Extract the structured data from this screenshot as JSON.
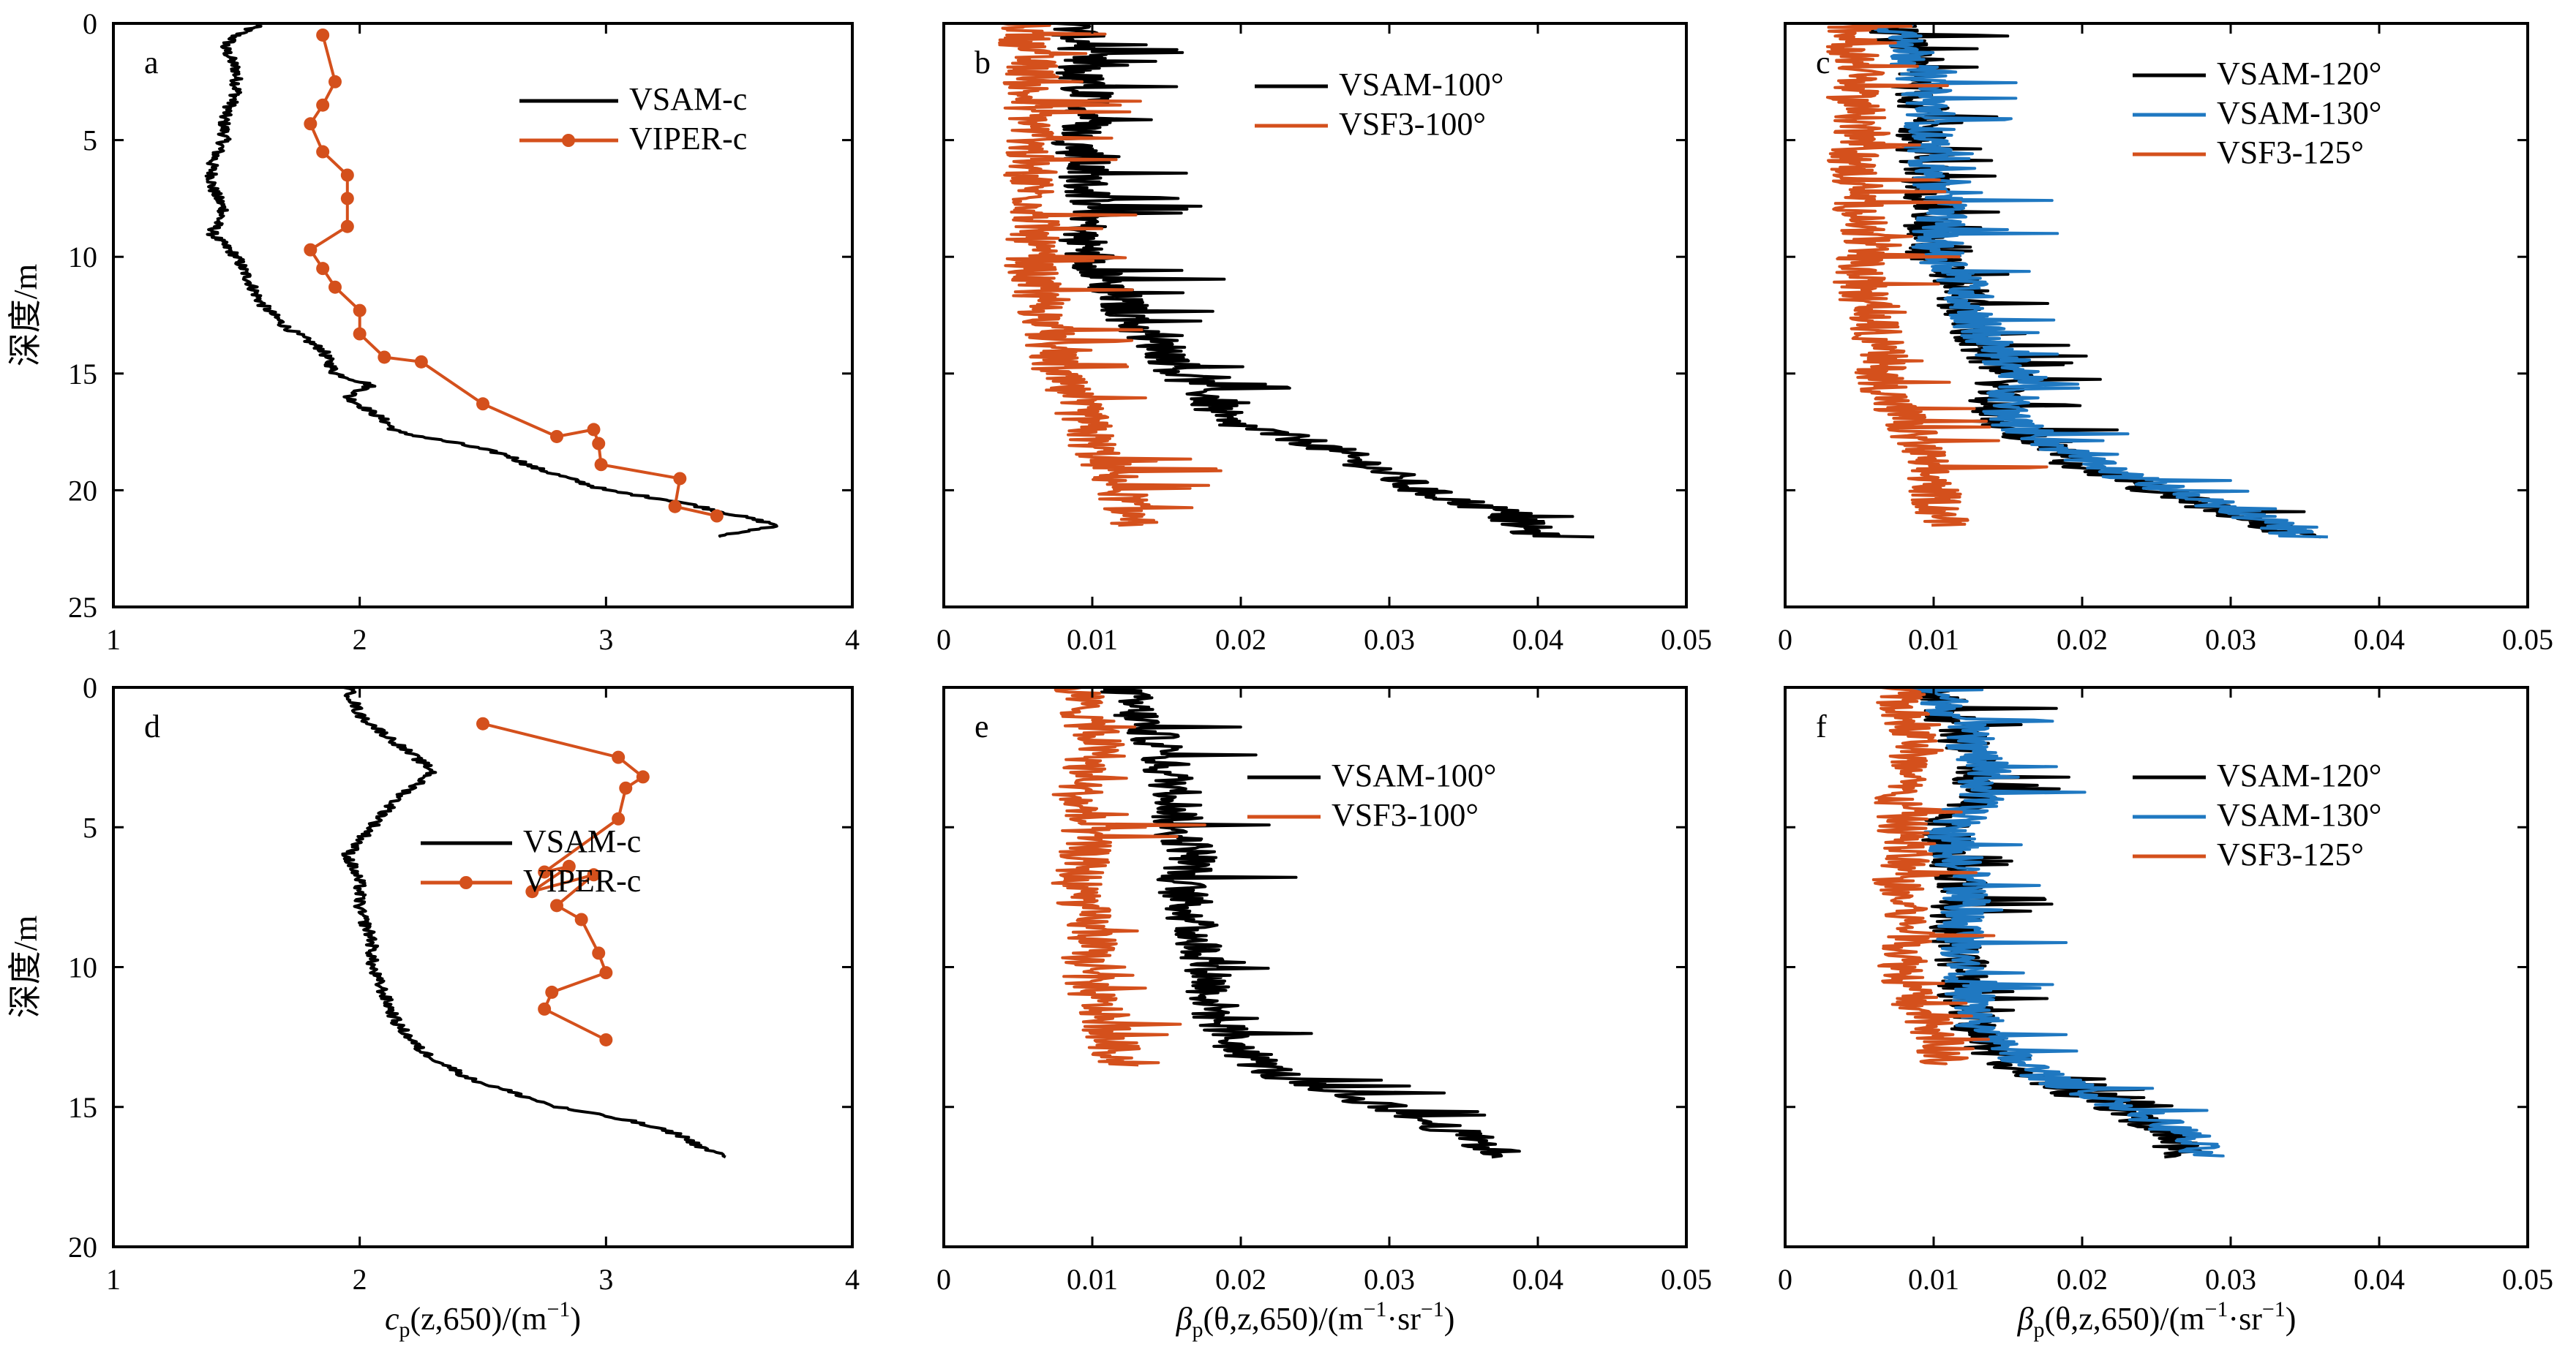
{
  "colors": {
    "black": "#000000",
    "orange": "#d4501c",
    "blue": "#1f78c1"
  },
  "ylabel_rows": [
    "深度/m",
    "深度/m"
  ],
  "xlabels": [
    {
      "main": "c",
      "sub": "p",
      "rest": "(z,650)/(m",
      "sup": "−1",
      "close": ")"
    },
    {
      "main": "β",
      "sub": "p",
      "rest": "(θ,z,650)/(m",
      "sup": "−1",
      "mid": "·sr",
      "sup2": "−1",
      "close": ")"
    },
    {
      "main": "β",
      "sub": "p",
      "rest": "(θ,z,650)/(m",
      "sup": "−1",
      "mid": "·sr",
      "sup2": "−1",
      "close": ")"
    }
  ],
  "chart_data": [
    {
      "panel": "a",
      "type": "line",
      "xlim": [
        1,
        4
      ],
      "ylim": [
        0,
        25
      ],
      "xticks": [
        "1",
        "2",
        "3",
        "4"
      ],
      "yticks": [
        "0",
        "5",
        "10",
        "15",
        "20",
        "25"
      ],
      "legend": [
        "VSAM-c",
        "VIPER-c"
      ],
      "series": [
        {
          "name": "VSAM-c",
          "color": "black",
          "markers": false,
          "depth": [
            0,
            0.5,
            1,
            2,
            3,
            4,
            5,
            6,
            7,
            8,
            9,
            10,
            11,
            12,
            13,
            14,
            15,
            15.5,
            16,
            17,
            17.5,
            18,
            18.5,
            19,
            19.5,
            20,
            20.5,
            21,
            21.5,
            22
          ],
          "values": [
            1.6,
            1.5,
            1.45,
            1.5,
            1.5,
            1.45,
            1.45,
            1.4,
            1.4,
            1.45,
            1.4,
            1.5,
            1.55,
            1.6,
            1.7,
            1.85,
            1.9,
            2.05,
            1.95,
            2.1,
            2.15,
            2.4,
            2.6,
            2.7,
            2.85,
            3.0,
            3.3,
            3.5,
            3.7,
            3.45
          ]
        },
        {
          "name": "VIPER-c",
          "color": "orange",
          "markers": true,
          "depth": [
            0.5,
            2.5,
            3.5,
            4.3,
            5.5,
            6.5,
            7.5,
            8.7,
            9.7,
            10.5,
            11.3,
            12.3,
            13.3,
            14.3,
            14.5,
            16.3,
            17.7,
            17.4,
            18,
            18.9,
            19.5,
            20.7,
            21.1
          ],
          "values": [
            1.85,
            1.9,
            1.85,
            1.8,
            1.85,
            1.95,
            1.95,
            1.95,
            1.8,
            1.85,
            1.9,
            2.0,
            2.0,
            2.1,
            2.25,
            2.5,
            2.8,
            2.95,
            2.97,
            2.98,
            3.3,
            3.28,
            3.45
          ]
        }
      ]
    },
    {
      "panel": "b",
      "type": "line",
      "xlim": [
        0,
        0.05
      ],
      "ylim": [
        0,
        25
      ],
      "xticks": [
        "0",
        "0.01",
        "0.02",
        "0.03",
        "0.04",
        "0.05"
      ],
      "yticks": [],
      "legend": [
        "VSAM-100°",
        "VSF3-100°"
      ],
      "series": [
        {
          "name": "VSAM-100°",
          "color": "black",
          "depth": [
            0,
            1,
            2,
            3,
            4,
            5,
            6,
            7,
            8,
            9,
            10,
            11,
            12,
            13,
            14,
            15,
            16,
            17,
            18,
            19,
            20,
            21,
            22
          ],
          "values": [
            0.0085,
            0.0095,
            0.009,
            0.0095,
            0.01,
            0.009,
            0.0095,
            0.0095,
            0.0105,
            0.009,
            0.01,
            0.011,
            0.012,
            0.013,
            0.015,
            0.016,
            0.018,
            0.0185,
            0.025,
            0.029,
            0.032,
            0.038,
            0.04
          ]
        },
        {
          "name": "VSF3-100°",
          "color": "orange",
          "depth": [
            0,
            1,
            2,
            3,
            4,
            5,
            6,
            7,
            8,
            9,
            10,
            11,
            12,
            13,
            14,
            15,
            16,
            17,
            18,
            19,
            20,
            21,
            21.5
          ],
          "values": [
            0.0055,
            0.0055,
            0.006,
            0.0055,
            0.006,
            0.006,
            0.0055,
            0.006,
            0.0062,
            0.006,
            0.0058,
            0.006,
            0.0065,
            0.007,
            0.0072,
            0.0075,
            0.0085,
            0.0095,
            0.01,
            0.011,
            0.012,
            0.0125,
            0.013
          ]
        }
      ]
    },
    {
      "panel": "c",
      "type": "line",
      "xlim": [
        0,
        0.05
      ],
      "ylim": [
        0,
        25
      ],
      "xticks": [
        "0",
        "0.01",
        "0.02",
        "0.03",
        "0.04",
        "0.05"
      ],
      "yticks": [],
      "legend": [
        "VSAM-120°",
        "VSAM-130°",
        "VSF3-125°"
      ],
      "series": [
        {
          "name": "VSAM-120°",
          "color": "black",
          "depth": [
            0,
            1,
            2,
            3,
            4,
            5,
            6,
            7,
            8,
            9,
            10,
            11,
            12,
            13,
            14,
            15,
            16,
            17,
            18,
            19,
            20,
            21,
            22
          ],
          "values": [
            0.007,
            0.008,
            0.0085,
            0.009,
            0.0095,
            0.009,
            0.0095,
            0.0095,
            0.01,
            0.0095,
            0.01,
            0.0115,
            0.012,
            0.0125,
            0.013,
            0.015,
            0.014,
            0.014,
            0.017,
            0.02,
            0.025,
            0.03,
            0.035
          ]
        },
        {
          "name": "VSAM-130°",
          "color": "blue",
          "depth": [
            0,
            1,
            2,
            3,
            4,
            5,
            6,
            7,
            8,
            9,
            10,
            11,
            12,
            13,
            14,
            15,
            16,
            17,
            18,
            19,
            20,
            21,
            22
          ],
          "values": [
            0.0075,
            0.0085,
            0.009,
            0.0095,
            0.01,
            0.0095,
            0.01,
            0.01,
            0.011,
            0.01,
            0.0105,
            0.012,
            0.0125,
            0.013,
            0.014,
            0.016,
            0.015,
            0.015,
            0.018,
            0.021,
            0.026,
            0.031,
            0.035
          ]
        },
        {
          "name": "VSF3-125°",
          "color": "orange",
          "depth": [
            0,
            1,
            2,
            3,
            4,
            5,
            6,
            7,
            8,
            9,
            10,
            11,
            12,
            13,
            14,
            15,
            16,
            17,
            18,
            19,
            20,
            21,
            21.5
          ],
          "values": [
            0.0045,
            0.0045,
            0.005,
            0.0045,
            0.005,
            0.005,
            0.0045,
            0.005,
            0.005,
            0.0055,
            0.005,
            0.005,
            0.0055,
            0.006,
            0.0065,
            0.0065,
            0.007,
            0.008,
            0.009,
            0.0095,
            0.01,
            0.0105,
            0.011
          ]
        }
      ]
    },
    {
      "panel": "d",
      "type": "line",
      "xlim": [
        1,
        4
      ],
      "ylim": [
        0,
        20
      ],
      "xticks": [
        "1",
        "2",
        "3",
        "4"
      ],
      "yticks": [
        "0",
        "5",
        "10",
        "15",
        "20"
      ],
      "legend": [
        "VSAM-c",
        "VIPER-c"
      ],
      "series": [
        {
          "name": "VSAM-c",
          "color": "black",
          "markers": false,
          "depth": [
            0,
            1,
            2,
            3,
            4,
            5,
            6,
            7,
            8,
            9,
            10,
            11,
            12,
            13,
            14,
            15,
            15.5,
            16,
            16.5,
            16.8
          ],
          "values": [
            1.95,
            2.0,
            2.15,
            2.3,
            2.15,
            2.05,
            1.95,
            2.0,
            2.0,
            2.05,
            2.05,
            2.1,
            2.15,
            2.25,
            2.45,
            2.8,
            3.1,
            3.3,
            3.4,
            3.5
          ]
        },
        {
          "name": "VIPER-c",
          "color": "orange",
          "markers": true,
          "depth": [
            1.3,
            2.5,
            3.2,
            3.6,
            4.7,
            6.6,
            6.4,
            7.3,
            6.7,
            7.8,
            8.3,
            9.5,
            10.2,
            10.9,
            11.5,
            12.6
          ],
          "values": [
            2.5,
            3.05,
            3.15,
            3.08,
            3.05,
            2.75,
            2.85,
            2.7,
            2.95,
            2.8,
            2.9,
            2.97,
            3.0,
            2.78,
            2.75,
            3.0
          ]
        }
      ]
    },
    {
      "panel": "e",
      "type": "line",
      "xlim": [
        0,
        0.05
      ],
      "ylim": [
        0,
        20
      ],
      "xticks": [
        "0",
        "0.01",
        "0.02",
        "0.03",
        "0.04",
        "0.05"
      ],
      "yticks": [],
      "legend": [
        "VSAM-100°",
        "VSF3-100°"
      ],
      "series": [
        {
          "name": "VSAM-100°",
          "color": "black",
          "depth": [
            0,
            1,
            2,
            3,
            4,
            5,
            6,
            7,
            8,
            9,
            10,
            11,
            12,
            13,
            14,
            15,
            16,
            16.8
          ],
          "values": [
            0.012,
            0.013,
            0.0145,
            0.015,
            0.016,
            0.0155,
            0.017,
            0.016,
            0.0165,
            0.017,
            0.018,
            0.018,
            0.0185,
            0.02,
            0.023,
            0.03,
            0.035,
            0.038
          ]
        },
        {
          "name": "VSF3-100°",
          "color": "orange",
          "depth": [
            0,
            1,
            2,
            3,
            4,
            5,
            6,
            7,
            8,
            9,
            10,
            11,
            12,
            13,
            13.5
          ],
          "values": [
            0.009,
            0.0095,
            0.0105,
            0.0095,
            0.009,
            0.0095,
            0.0095,
            0.009,
            0.0095,
            0.01,
            0.0095,
            0.01,
            0.011,
            0.0115,
            0.012
          ]
        }
      ]
    },
    {
      "panel": "f",
      "type": "line",
      "xlim": [
        0,
        0.05
      ],
      "ylim": [
        0,
        20
      ],
      "xticks": [
        "0",
        "0.01",
        "0.02",
        "0.03",
        "0.04",
        "0.05"
      ],
      "yticks": [],
      "legend": [
        "VSAM-120°",
        "VSAM-130°",
        "VSF3-125°"
      ],
      "series": [
        {
          "name": "VSAM-120°",
          "color": "black",
          "depth": [
            0,
            1,
            2,
            3,
            4,
            5,
            6,
            7,
            8,
            9,
            10,
            11,
            12,
            13,
            14,
            15,
            16,
            16.8
          ],
          "values": [
            0.01,
            0.011,
            0.012,
            0.013,
            0.0125,
            0.0105,
            0.011,
            0.012,
            0.0115,
            0.0115,
            0.012,
            0.012,
            0.0125,
            0.014,
            0.017,
            0.022,
            0.026,
            0.027
          ]
        },
        {
          "name": "VSAM-130°",
          "color": "blue",
          "depth": [
            0,
            1,
            2,
            3,
            4,
            5,
            6,
            7,
            8,
            9,
            10,
            11,
            12,
            13,
            14,
            15,
            16,
            16.8
          ],
          "values": [
            0.01,
            0.0115,
            0.0125,
            0.0135,
            0.013,
            0.011,
            0.0115,
            0.0125,
            0.012,
            0.012,
            0.0125,
            0.0125,
            0.013,
            0.0145,
            0.018,
            0.023,
            0.027,
            0.028
          ]
        },
        {
          "name": "VSF3-125°",
          "color": "orange",
          "depth": [
            0,
            1,
            2,
            3,
            4,
            5,
            6,
            7,
            8,
            9,
            10,
            11,
            12,
            13,
            13.5
          ],
          "values": [
            0.0075,
            0.008,
            0.009,
            0.008,
            0.0075,
            0.008,
            0.008,
            0.0075,
            0.008,
            0.0085,
            0.008,
            0.0085,
            0.0095,
            0.0105,
            0.011
          ]
        }
      ]
    }
  ]
}
